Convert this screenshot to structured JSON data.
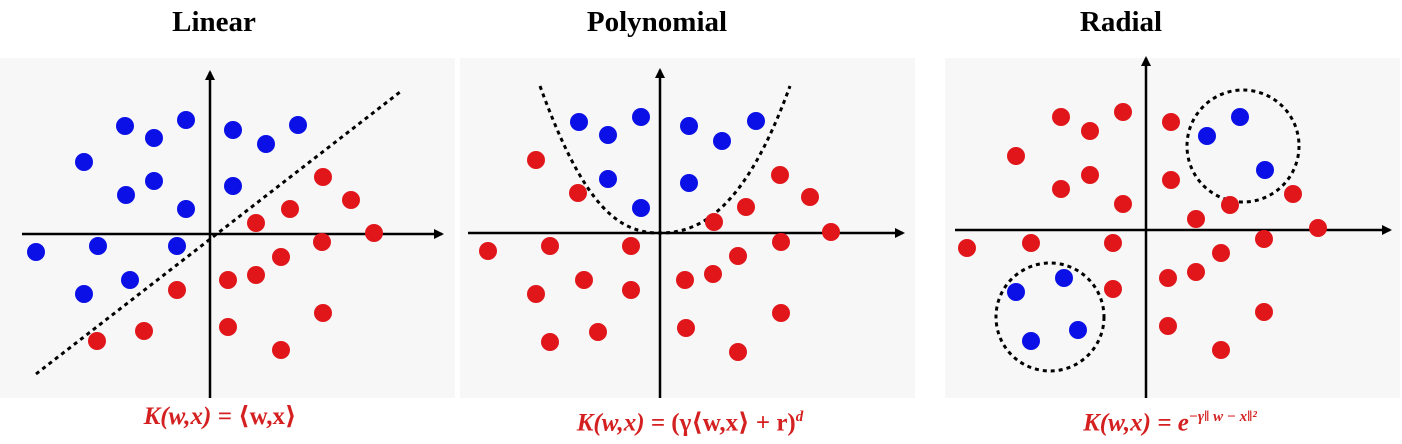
{
  "panels": [
    {
      "title": "Linear",
      "formula_lhs": "K(w,x) = ",
      "formula_rhs": "⟨w,x⟩",
      "formula_sup": "",
      "boundary": "line"
    },
    {
      "title": "Polynomial",
      "formula_lhs": "K(w,x) = ",
      "formula_rhs": "(γ⟨w,x⟩ + r)",
      "formula_sup": "d",
      "boundary": "parabola"
    },
    {
      "title": "Radial",
      "formula_lhs": "K(w,x) = ",
      "formula_rhs": "e",
      "formula_sup": "−γ‖ w − x‖²",
      "boundary": "circles"
    }
  ],
  "colors": {
    "class_a": "#0a10e6",
    "class_b": "#e0161b",
    "axis": "#000000",
    "boundary": "#000000",
    "formula": "#d42020",
    "panel_bg": "#f7f7f7"
  }
}
